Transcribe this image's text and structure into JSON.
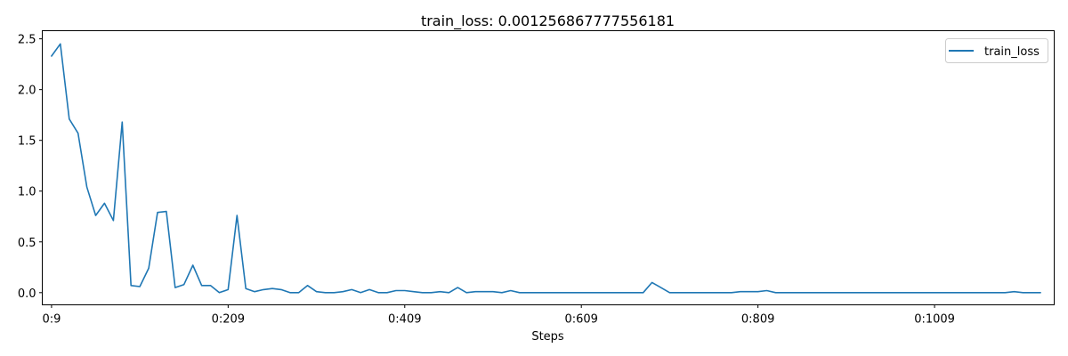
{
  "chart_data": {
    "type": "line",
    "title": "train_loss: 0.001256867777556181",
    "xlabel": "Steps",
    "ylabel": "",
    "xlim": [
      -1.5,
      1144.5
    ],
    "ylim": [
      -0.12,
      2.58
    ],
    "x_ticks": [
      {
        "value": 9,
        "label": "0:9"
      },
      {
        "value": 209,
        "label": "0:209"
      },
      {
        "value": 409,
        "label": "0:409"
      },
      {
        "value": 609,
        "label": "0:609"
      },
      {
        "value": 809,
        "label": "0:809"
      },
      {
        "value": 1009,
        "label": "0:1009"
      }
    ],
    "y_ticks": [
      {
        "value": 0.0,
        "label": "0.0"
      },
      {
        "value": 0.5,
        "label": "0.5"
      },
      {
        "value": 1.0,
        "label": "1.0"
      },
      {
        "value": 1.5,
        "label": "1.5"
      },
      {
        "value": 2.0,
        "label": "2.0"
      },
      {
        "value": 2.5,
        "label": "2.5"
      }
    ],
    "legend": {
      "position": "top-right",
      "entries": [
        "train_loss"
      ]
    },
    "series": [
      {
        "name": "train_loss",
        "color": "#1f77b4",
        "x": [
          9,
          19,
          29,
          39,
          49,
          59,
          69,
          79,
          89,
          99,
          109,
          119,
          129,
          139,
          149,
          159,
          169,
          179,
          189,
          199,
          209,
          219,
          229,
          239,
          249,
          259,
          269,
          279,
          289,
          299,
          309,
          319,
          329,
          339,
          349,
          359,
          369,
          379,
          389,
          399,
          409,
          419,
          429,
          439,
          449,
          459,
          469,
          479,
          489,
          499,
          509,
          519,
          529,
          539,
          549,
          559,
          569,
          579,
          589,
          599,
          609,
          619,
          629,
          639,
          649,
          659,
          669,
          679,
          689,
          699,
          709,
          719,
          729,
          739,
          749,
          759,
          769,
          779,
          789,
          799,
          809,
          819,
          829,
          839,
          849,
          859,
          869,
          879,
          889,
          899,
          909,
          919,
          929,
          939,
          949,
          959,
          969,
          979,
          989,
          999,
          1009,
          1019,
          1029,
          1039,
          1049,
          1059,
          1069,
          1079,
          1089,
          1099,
          1109,
          1119,
          1129
        ],
        "values": [
          2.33,
          2.45,
          1.71,
          1.57,
          1.04,
          0.76,
          0.88,
          0.71,
          1.68,
          0.07,
          0.06,
          0.24,
          0.79,
          0.8,
          0.05,
          0.08,
          0.27,
          0.07,
          0.07,
          0.0,
          0.03,
          0.76,
          0.04,
          0.01,
          0.03,
          0.04,
          0.03,
          0.0,
          0.0,
          0.07,
          0.01,
          0.0,
          0.0,
          0.01,
          0.03,
          0.0,
          0.03,
          0.0,
          0.0,
          0.02,
          0.02,
          0.01,
          0.0,
          0.0,
          0.01,
          0.0,
          0.05,
          0.0,
          0.01,
          0.01,
          0.01,
          0.0,
          0.02,
          0.0,
          0.0,
          0.0,
          0.0,
          0.0,
          0.0,
          0.0,
          0.0,
          0.0,
          0.0,
          0.0,
          0.0,
          0.0,
          0.0,
          0.0,
          0.1,
          0.05,
          0.0,
          0.0,
          0.0,
          0.0,
          0.0,
          0.0,
          0.0,
          0.0,
          0.01,
          0.01,
          0.01,
          0.02,
          0.0,
          0.0,
          0.0,
          0.0,
          0.0,
          0.0,
          0.0,
          0.0,
          0.0,
          0.0,
          0.0,
          0.0,
          0.0,
          0.0,
          0.0,
          0.0,
          0.0,
          0.0,
          0.0,
          0.0,
          0.0,
          0.0,
          0.0,
          0.0,
          0.0,
          0.0,
          0.0,
          0.01,
          0.0,
          0.0,
          0.0
        ]
      }
    ]
  }
}
